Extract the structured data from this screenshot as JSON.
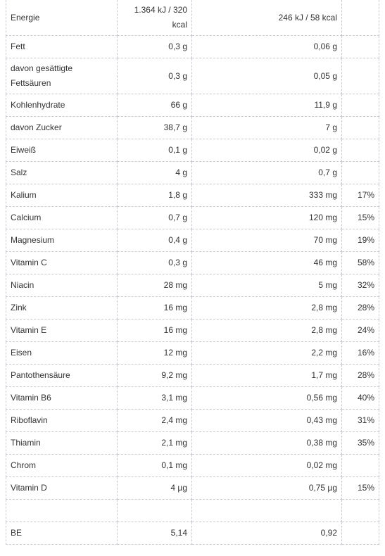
{
  "table": {
    "rows": [
      {
        "name": "Energie",
        "per100": "1.364 kJ / 320 kcal",
        "portion": "246 kJ / 58 kcal",
        "pct": ""
      },
      {
        "name": "Fett",
        "per100": "0,3 g",
        "portion": "0,06 g",
        "pct": ""
      },
      {
        "name": "davon gesättigte Fettsäuren",
        "per100": "0,3 g",
        "portion": "0,05 g",
        "pct": ""
      },
      {
        "name": "Kohlenhydrate",
        "per100": "66 g",
        "portion": "11,9 g",
        "pct": ""
      },
      {
        "name": "davon Zucker",
        "per100": "38,7 g",
        "portion": "7 g",
        "pct": ""
      },
      {
        "name": "Eiweiß",
        "per100": "0,1 g",
        "portion": "0,02 g",
        "pct": ""
      },
      {
        "name": "Salz",
        "per100": "4 g",
        "portion": "0,7 g",
        "pct": ""
      },
      {
        "name": "Kalium",
        "per100": "1,8 g",
        "portion": "333 mg",
        "pct": "17%"
      },
      {
        "name": "Calcium",
        "per100": "0,7 g",
        "portion": "120 mg",
        "pct": "15%"
      },
      {
        "name": "Magnesium",
        "per100": "0,4 g",
        "portion": "70 mg",
        "pct": "19%"
      },
      {
        "name": "Vitamin C",
        "per100": "0,3 g",
        "portion": "46 mg",
        "pct": "58%"
      },
      {
        "name": "Niacin",
        "per100": "28 mg",
        "portion": "5 mg",
        "pct": "32%"
      },
      {
        "name": "Zink",
        "per100": "16 mg",
        "portion": "2,8 mg",
        "pct": "28%"
      },
      {
        "name": "Vitamin E",
        "per100": "16 mg",
        "portion": "2,8 mg",
        "pct": "24%"
      },
      {
        "name": "Eisen",
        "per100": "12 mg",
        "portion": "2,2 mg",
        "pct": "16%"
      },
      {
        "name": "Pantothensäure",
        "per100": "9,2 mg",
        "portion": "1,7 mg",
        "pct": "28%"
      },
      {
        "name": "Vitamin B6",
        "per100": "3,1 mg",
        "portion": "0,56 mg",
        "pct": "40%"
      },
      {
        "name": "Riboflavin",
        "per100": "2,4 mg",
        "portion": "0,43 mg",
        "pct": "31%"
      },
      {
        "name": "Thiamin",
        "per100": "2,1 mg",
        "portion": "0,38 mg",
        "pct": "35%"
      },
      {
        "name": "Chrom",
        "per100": "0,1 mg",
        "portion": "0,02 mg",
        "pct": ""
      },
      {
        "name": "Vitamin D",
        "per100": "4 µg",
        "portion": "0,75 µg",
        "pct": "15%"
      },
      {
        "name": "",
        "per100": "",
        "portion": "",
        "pct": ""
      },
      {
        "name": "BE",
        "per100": "5,14",
        "portion": "0,92",
        "pct": ""
      }
    ]
  }
}
